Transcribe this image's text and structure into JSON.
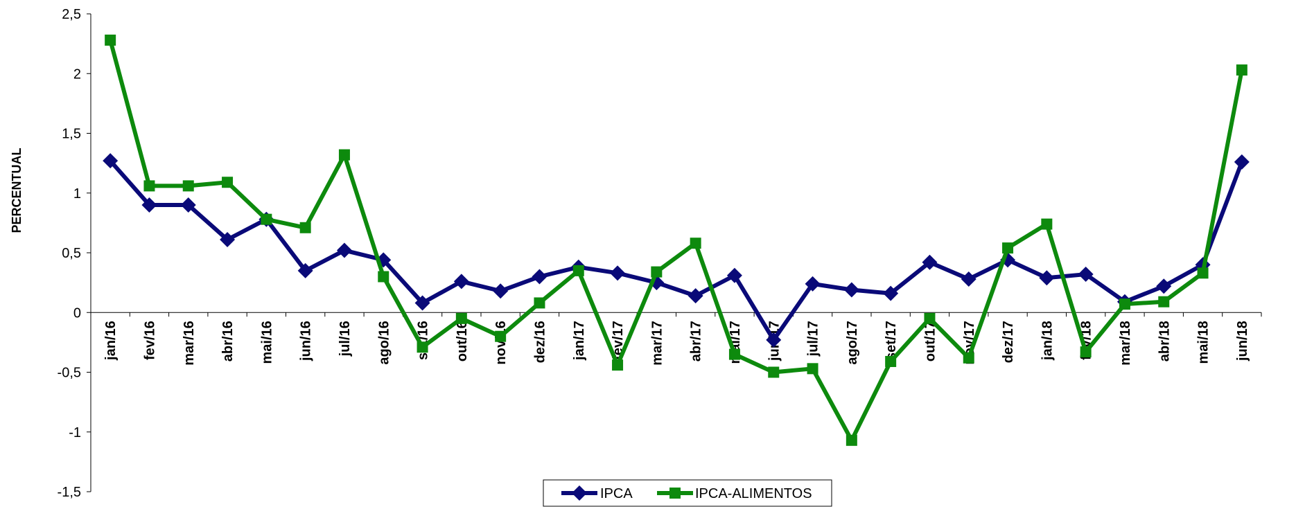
{
  "chart_data": {
    "type": "line",
    "title": "",
    "xlabel": "",
    "ylabel": "PERCENTUAL",
    "ylim": [
      -1.5,
      2.5
    ],
    "yticks": [
      "2,5",
      "2",
      "1,5",
      "1",
      "0,5",
      "0",
      "-0,5",
      "-1",
      "-1,5"
    ],
    "categories": [
      "jan/16",
      "fev/16",
      "mar/16",
      "abr/16",
      "mai/16",
      "jun/16",
      "jul/16",
      "ago/16",
      "set/16",
      "out/16",
      "nov/16",
      "dez/16",
      "jan/17",
      "fev/17",
      "mar/17",
      "abr/17",
      "mai/17",
      "jun/17",
      "jul/17",
      "ago/17",
      "set/17",
      "out/17",
      "nov/17",
      "dez/17",
      "jan/18",
      "fev/18",
      "mar/18",
      "abr/18",
      "mai/18",
      "jun/18"
    ],
    "series": [
      {
        "name": "IPCA",
        "color": "#0a0a78",
        "marker": "diamond",
        "values": [
          1.27,
          0.9,
          0.9,
          0.61,
          0.78,
          0.35,
          0.52,
          0.44,
          0.08,
          0.26,
          0.18,
          0.3,
          0.38,
          0.33,
          0.25,
          0.14,
          0.31,
          -0.23,
          0.24,
          0.19,
          0.16,
          0.42,
          0.28,
          0.44,
          0.29,
          0.32,
          0.09,
          0.22,
          0.4,
          1.26
        ]
      },
      {
        "name": "IPCA-ALIMENTOS",
        "color": "#0d8a0d",
        "marker": "square",
        "values": [
          2.28,
          1.06,
          1.06,
          1.09,
          0.78,
          0.71,
          1.32,
          0.3,
          -0.29,
          -0.05,
          -0.2,
          0.08,
          0.35,
          -0.44,
          0.34,
          0.58,
          -0.35,
          -0.5,
          -0.47,
          -1.07,
          -0.41,
          -0.05,
          -0.38,
          0.54,
          0.74,
          -0.33,
          0.07,
          0.09,
          0.33,
          2.03
        ]
      }
    ],
    "grid": false,
    "legend_position": "bottom-center"
  }
}
